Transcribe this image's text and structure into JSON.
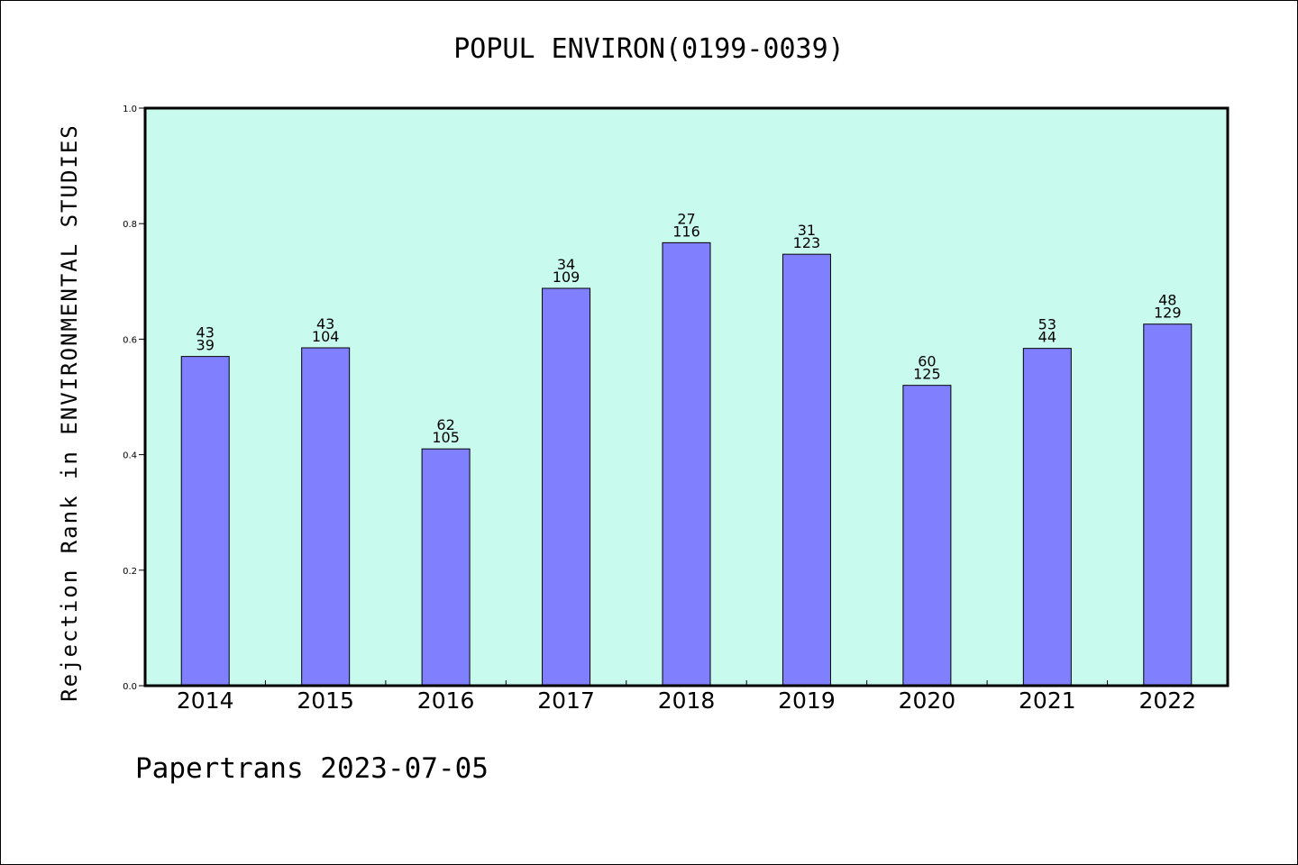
{
  "chart_data": {
    "type": "bar",
    "title": "POPUL ENVIRON(0199-0039)",
    "xlabel": "",
    "ylabel": "Rejection Rank in ENVIRONMENTAL STUDIES",
    "categories": [
      "2014",
      "2015",
      "2016",
      "2017",
      "2018",
      "2019",
      "2020",
      "2021",
      "2022"
    ],
    "values": [
      0.57,
      0.585,
      0.41,
      0.688,
      0.767,
      0.747,
      0.52,
      0.584,
      0.626
    ],
    "bar_labels_top": [
      "43",
      "43",
      "62",
      "34",
      "27",
      "31",
      "60",
      "53",
      "48"
    ],
    "bar_labels_bottom": [
      "39",
      "104",
      "105",
      "109",
      "116",
      "123",
      "125",
      "44",
      "129"
    ],
    "ylim": [
      0,
      1.0
    ],
    "yticks": [
      "0.0",
      "0.2",
      "0.4",
      "0.6",
      "0.8",
      "1.0"
    ],
    "grid": false,
    "colors": {
      "plot_background": "#c8fbee",
      "bar_fill": "#8080ff",
      "bar_stroke": "#000000"
    }
  },
  "footer": {
    "note": "Papertrans 2023-07-05"
  }
}
